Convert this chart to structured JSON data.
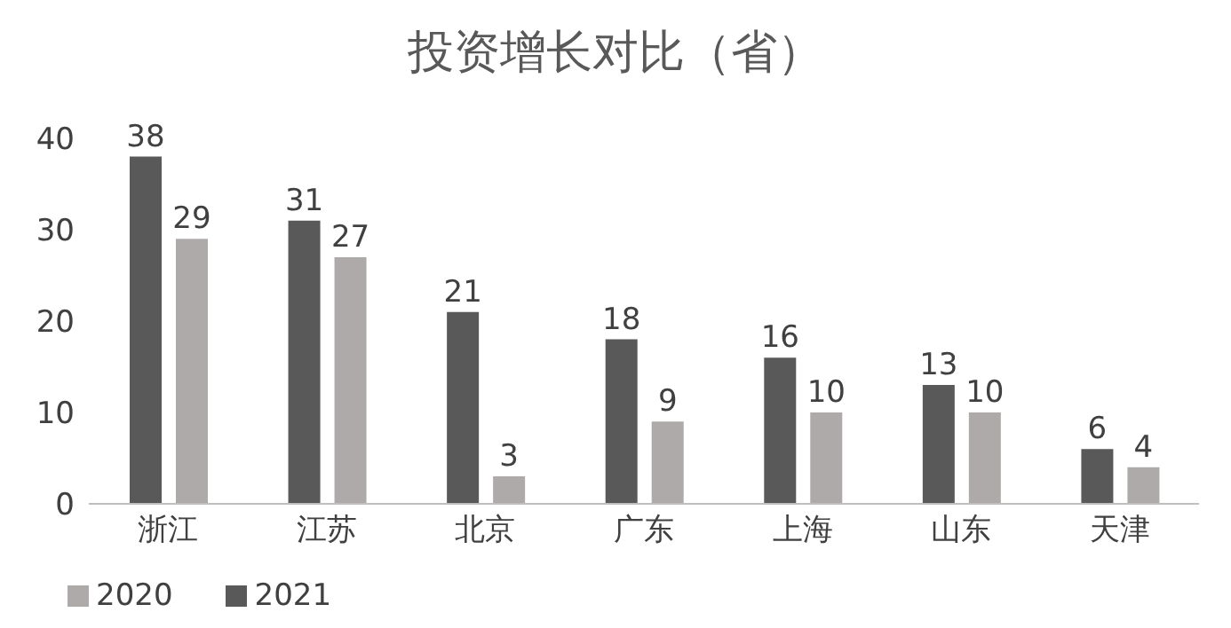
{
  "chart_data": {
    "type": "bar",
    "title": "投资增长对比（省）",
    "categories": [
      "浙江",
      "江苏",
      "北京",
      "广东",
      "上海",
      "山东",
      "天津"
    ],
    "series": [
      {
        "name": "2021",
        "color": "#595959",
        "values": [
          38,
          31,
          21,
          18,
          16,
          13,
          6
        ]
      },
      {
        "name": "2020",
        "color": "#aeaaaa",
        "values": [
          29,
          27,
          3,
          9,
          10,
          10,
          4
        ]
      }
    ],
    "ylim": [
      0,
      40
    ],
    "yticks": [
      0,
      10,
      20,
      30,
      40
    ],
    "grid": false,
    "legend": "bottom left",
    "data_labels": true
  }
}
